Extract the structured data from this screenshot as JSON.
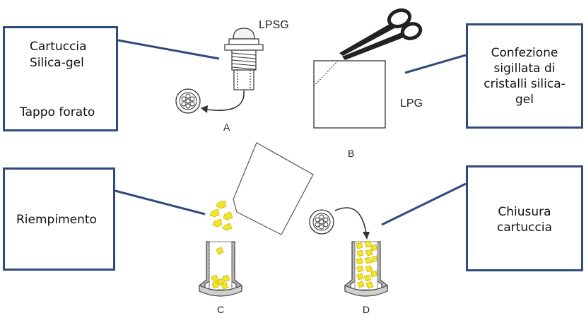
{
  "callouts": {
    "cartridge": {
      "line1": "Cartuccia",
      "line2": "Silica-gel",
      "line3": "Tappo forato"
    },
    "package": {
      "line1": "Confezione",
      "line2": "sigillata di",
      "line3": "cristalli silica-",
      "line4": "gel"
    },
    "filling": {
      "text": "Riempimento"
    },
    "closing": {
      "line1": "Chiusura",
      "line2": "cartuccia"
    }
  },
  "labels": {
    "lpsg": "LPSG",
    "lpg": "LPG",
    "a": "A",
    "b": "B",
    "c": "C",
    "d": "D"
  },
  "colors": {
    "callout_border": "#2f4b7c",
    "crystal": "#f2e52a",
    "line": "#333333"
  }
}
